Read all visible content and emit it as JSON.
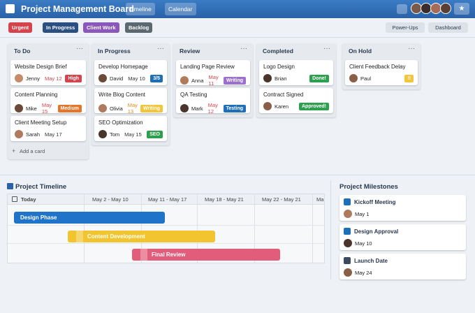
{
  "header": {
    "title": "Project Management Board",
    "tabs": [
      "Timeline",
      "Calendar"
    ]
  },
  "labels": [
    {
      "text": "Urgent",
      "color": "#d5444c"
    },
    {
      "text": "In Progress",
      "color": "#2b4f80"
    },
    {
      "text": "Client Work",
      "color": "#8b57bb"
    },
    {
      "text": "Backlog",
      "color": "#5c6870"
    }
  ],
  "toolbar": [
    "Power-Ups",
    "Dashboard"
  ],
  "lists": [
    {
      "title": "To Do",
      "cards": [
        {
          "title": "Website Design Brief",
          "person": "Jenny",
          "date": "May 12",
          "date_color": "#d5444c",
          "tag": {
            "text": "High",
            "color": "#d5444c"
          }
        },
        {
          "title": "Content Planning",
          "person": "Mike",
          "date": "May 15",
          "date_color": "#d5444c",
          "tag": {
            "text": "Medium",
            "color": "#e8742a"
          }
        },
        {
          "title": "Client Meeting Setup",
          "person": "Sarah",
          "date": "May 17",
          "date_color": "#333333",
          "tag": null
        }
      ],
      "add": "Add a card"
    },
    {
      "title": "In Progress",
      "cards": [
        {
          "title": "Develop Homepage",
          "person": "David",
          "date": "May 10",
          "date_color": "#333333",
          "tag": {
            "text": "3/5",
            "color": "#1f6fb8"
          }
        },
        {
          "title": "Write Blog Content",
          "person": "Olivia",
          "date": "May 13",
          "date_color": "#e08a1e",
          "tag": {
            "text": "Writing",
            "color": "#f3c53a"
          }
        },
        {
          "title": "SEO Optimization",
          "person": "Tom",
          "date": "May 15",
          "date_color": "#333333",
          "tag": {
            "text": "SEO",
            "color": "#2e9e4f"
          }
        }
      ]
    },
    {
      "title": "Review",
      "cards": [
        {
          "title": "Landing Page Review",
          "person": "Anna",
          "date": "May 11",
          "date_color": "#d5444c",
          "tag": {
            "text": "Writing",
            "color": "#9b6fd0"
          }
        },
        {
          "title": "QA Testing",
          "person": "Mark",
          "date": "May 12",
          "date_color": "#d5444c",
          "tag": {
            "text": "Testing",
            "color": "#1f6fb8"
          }
        }
      ]
    },
    {
      "title": "Completed",
      "cards": [
        {
          "title": "Logo Design",
          "person": "Brian",
          "date": null,
          "date_color": "#333333",
          "tag": {
            "text": "Done!",
            "color": "#2e9e4f"
          }
        },
        {
          "title": "Contract Signed",
          "person": "Karen",
          "date": null,
          "date_color": "#333333",
          "tag": {
            "text": "Approved!",
            "color": "#2e9e4f"
          }
        }
      ]
    },
    {
      "title": "On Hold",
      "cards": [
        {
          "title": "Client Feedback Delay",
          "person": "Paul",
          "date": null,
          "date_color": "#333333",
          "tag": {
            "text": "!!",
            "color": "#f3c53a"
          }
        }
      ]
    }
  ],
  "timeline": {
    "title": "Project Timeline",
    "columns": [
      "Today",
      "May 2 - May 10",
      "May 11 - May 17",
      "May 18 - May 21",
      "May 22 - May 21",
      "Ma"
    ],
    "bars": [
      {
        "text": "Design Phase",
        "color": "#1f73c9"
      },
      {
        "text": "Content Development",
        "color": "#f2c530"
      },
      {
        "text": "Final Review",
        "color": "#e25d7a"
      }
    ]
  },
  "milestones": {
    "title": "Project Milestones",
    "items": [
      {
        "title": "Kickoff Meeting",
        "date": "May 1"
      },
      {
        "title": "Design Approval",
        "date": "May 10"
      },
      {
        "title": "Launch Date",
        "date": "May 24"
      }
    ]
  }
}
